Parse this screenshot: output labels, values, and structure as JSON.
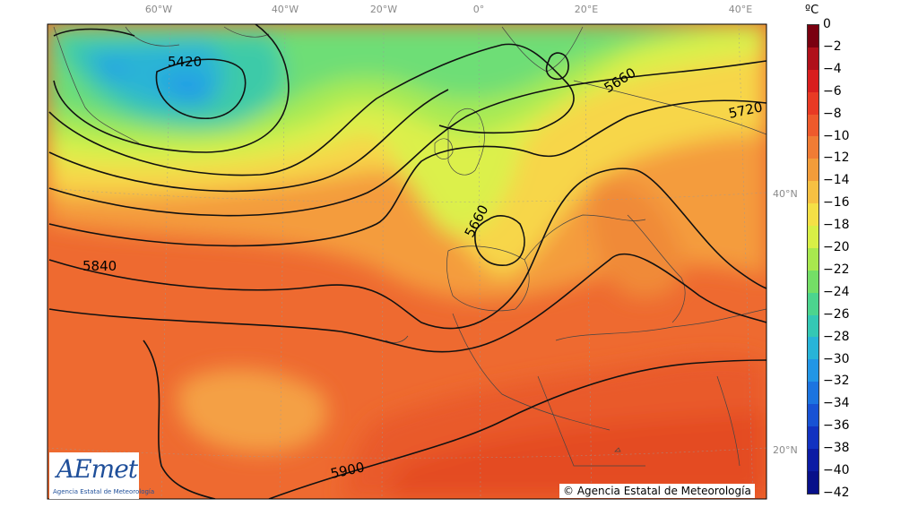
{
  "map": {
    "longitude_labels": [
      "60°W",
      "40°W",
      "20°W",
      "0°",
      "20°E",
      "40°E"
    ],
    "latitude_labels": [
      "40°N",
      "20°N"
    ],
    "contour_labels": [
      "5420",
      "5660",
      "5720",
      "5660",
      "5840",
      "5900"
    ]
  },
  "colorbar": {
    "unit": "ºC",
    "ticks": [
      "0",
      "−2",
      "−4",
      "−6",
      "−8",
      "−10",
      "−12",
      "−14",
      "−16",
      "−18",
      "−20",
      "−22",
      "−24",
      "−26",
      "−28",
      "−30",
      "−32",
      "−34",
      "−36",
      "−38",
      "−40",
      "−42"
    ],
    "colors": [
      "#7a0010",
      "#b0101a",
      "#d81e1e",
      "#e83a24",
      "#ee5a2c",
      "#f07c34",
      "#f29c3a",
      "#f6c042",
      "#f4e046",
      "#d8ef46",
      "#a8e84e",
      "#74de66",
      "#4cd48e",
      "#34c8b4",
      "#28b4d8",
      "#2296e6",
      "#1c74e0",
      "#1852d4",
      "#1232c0",
      "#0c1ca4",
      "#08108a"
    ]
  },
  "logo": {
    "text": "AEmet",
    "subtitle": "Agencia Estatal de Meteorología"
  },
  "copyright": "© Agencia Estatal de Meteorología"
}
